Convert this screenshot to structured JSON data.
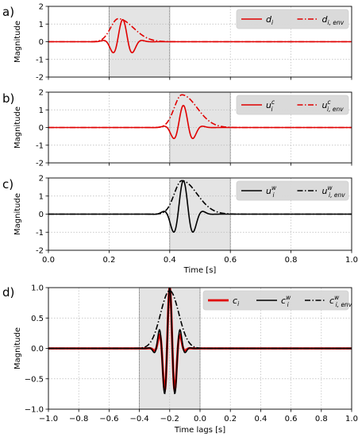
{
  "chart_data": [
    {
      "type": "line",
      "panel_label": "a)",
      "ylabel": "Magnitude",
      "xlim": [
        0.0,
        1.0
      ],
      "ylim": [
        -2,
        2
      ],
      "x_ticks": [
        "0.0",
        "0.2",
        "0.4",
        "0.6",
        "0.8",
        "1.0"
      ],
      "y_ticks": [
        "-2",
        "-1",
        "0",
        "1",
        "2"
      ],
      "grid": true,
      "legend_position": "top-right",
      "highlight_region": [
        0.2,
        0.4
      ],
      "series": [
        {
          "name": "d_i",
          "label_base": "d",
          "label_sub": "i",
          "label_sup": "",
          "color": "#e00000",
          "style": "solid",
          "width": 1.6,
          "wavelet": {
            "center": 0.245,
            "amplitude": 1.25,
            "frequency": 14,
            "sigma": 0.028
          }
        },
        {
          "name": "d_i,env",
          "label_base": "d",
          "label_sub": "i, env",
          "label_sup": "",
          "color": "#e00000",
          "style": "dashdot",
          "width": 1.6,
          "envelope": {
            "center": 0.23,
            "amplitude": 1.3,
            "rise": 0.025,
            "decay": 0.05
          }
        }
      ]
    },
    {
      "type": "line",
      "panel_label": "b)",
      "ylabel": "Magnitude",
      "xlim": [
        0.0,
        1.0
      ],
      "ylim": [
        -2,
        2
      ],
      "x_ticks": [
        "0.0",
        "0.2",
        "0.4",
        "0.6",
        "0.8",
        "1.0"
      ],
      "y_ticks": [
        "-2",
        "-1",
        "0",
        "1",
        "2"
      ],
      "grid": true,
      "legend_position": "top-right",
      "highlight_region": [
        0.4,
        0.6
      ],
      "series": [
        {
          "name": "u_i^c",
          "label_base": "u",
          "label_sub": "i",
          "label_sup": "c",
          "color": "#e00000",
          "style": "solid",
          "width": 1.6,
          "wavelet": {
            "center": 0.445,
            "amplitude": 1.25,
            "frequency": 14,
            "sigma": 0.028
          }
        },
        {
          "name": "u_i,env^c",
          "label_base": "u",
          "label_sub": "i, env",
          "label_sup": "c",
          "color": "#e00000",
          "style": "dashdot",
          "width": 1.6,
          "envelope": {
            "center": 0.44,
            "amplitude": 1.85,
            "rise": 0.025,
            "decay": 0.05
          }
        }
      ]
    },
    {
      "type": "line",
      "panel_label": "c)",
      "ylabel": "Magnitude",
      "xlabel": "Time [s]",
      "xlim": [
        0.0,
        1.0
      ],
      "ylim": [
        -2,
        2
      ],
      "x_ticks": [
        "0.0",
        "0.2",
        "0.4",
        "0.6",
        "0.8",
        "1.0"
      ],
      "y_ticks": [
        "-2",
        "-1",
        "0",
        "1",
        "2"
      ],
      "grid": true,
      "legend_position": "top-right",
      "highlight_region": [
        0.4,
        0.6
      ],
      "series": [
        {
          "name": "u_i^w",
          "label_base": "u",
          "label_sub": "i",
          "label_sup": "w",
          "color": "#000000",
          "style": "solid",
          "width": 1.6,
          "wavelet": {
            "center": 0.445,
            "amplitude": 1.85,
            "frequency": 14,
            "sigma": 0.03
          }
        },
        {
          "name": "u_i,env^w",
          "label_base": "u",
          "label_sub": "i, env",
          "label_sup": "w",
          "color": "#000000",
          "style": "dashdot",
          "width": 1.6,
          "envelope": {
            "center": 0.44,
            "amplitude": 1.85,
            "rise": 0.025,
            "decay": 0.05
          }
        }
      ]
    },
    {
      "type": "line",
      "panel_label": "d)",
      "ylabel": "Magnitude",
      "xlabel": "Time lags [s]",
      "xlim": [
        -1.0,
        1.0
      ],
      "ylim": [
        -1.0,
        1.0
      ],
      "x_ticks": [
        "−1.0",
        "−0.8",
        "−0.6",
        "−0.4",
        "−0.2",
        "0.0",
        "0.2",
        "0.4",
        "0.6",
        "0.8",
        "1.0"
      ],
      "y_ticks": [
        "−1.0",
        "−0.5",
        "0.0",
        "0.5",
        "1.0"
      ],
      "grid": true,
      "legend_position": "top-right",
      "highlight_region": [
        -0.4,
        0.0
      ],
      "series": [
        {
          "name": "c_i",
          "label_base": "c",
          "label_sub": "i",
          "label_sup": "",
          "color": "#e00000",
          "style": "solid",
          "width": 2.8,
          "wavelet": {
            "center": -0.2,
            "amplitude": 1.0,
            "frequency": 14,
            "sigma": 0.04
          }
        },
        {
          "name": "c_i^w",
          "label_base": "c",
          "label_sub": "i",
          "label_sup": "w",
          "color": "#000000",
          "style": "solid",
          "width": 1.6,
          "wavelet": {
            "center": -0.2,
            "amplitude": 1.0,
            "frequency": 14,
            "sigma": 0.045
          }
        },
        {
          "name": "c_i,env^w",
          "label_base": "c",
          "label_sub": "i, env",
          "label_sup": "w",
          "color": "#000000",
          "style": "dashdot",
          "width": 1.6,
          "gauss": {
            "center": -0.2,
            "amplitude": 0.95,
            "sigma": 0.06
          }
        }
      ]
    }
  ]
}
